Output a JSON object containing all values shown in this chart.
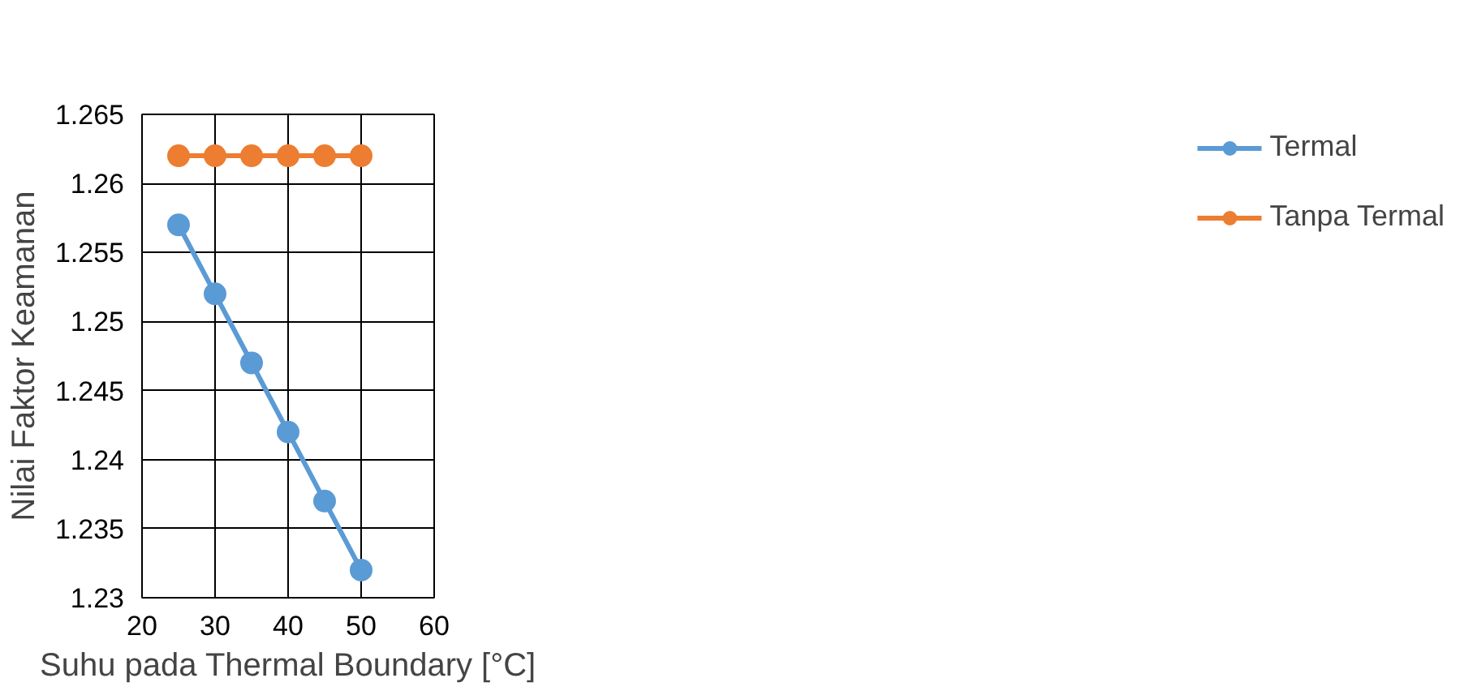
{
  "chart_data": {
    "type": "line",
    "xlabel": "Suhu pada Thermal Boundary [°C]",
    "ylabel": "Nilai Faktor Keamanan",
    "x": [
      25,
      30,
      35,
      40,
      45,
      50
    ],
    "series": [
      {
        "name": "Termal",
        "color": "#5b9bd5",
        "values": [
          1.257,
          1.252,
          1.247,
          1.242,
          1.237,
          1.232
        ]
      },
      {
        "name": "Tanpa Termal",
        "color": "#ed7d31",
        "values": [
          1.262,
          1.262,
          1.262,
          1.262,
          1.262,
          1.262
        ]
      }
    ],
    "xlim": [
      20,
      60
    ],
    "xticks": [
      20,
      30,
      40,
      50,
      60
    ],
    "ylim": [
      1.23,
      1.265
    ],
    "yticks": [
      1.23,
      1.235,
      1.24,
      1.245,
      1.25,
      1.255,
      1.26,
      1.265
    ],
    "grid": true,
    "legend": "right",
    "marker": "circle",
    "line_style": "solid"
  }
}
